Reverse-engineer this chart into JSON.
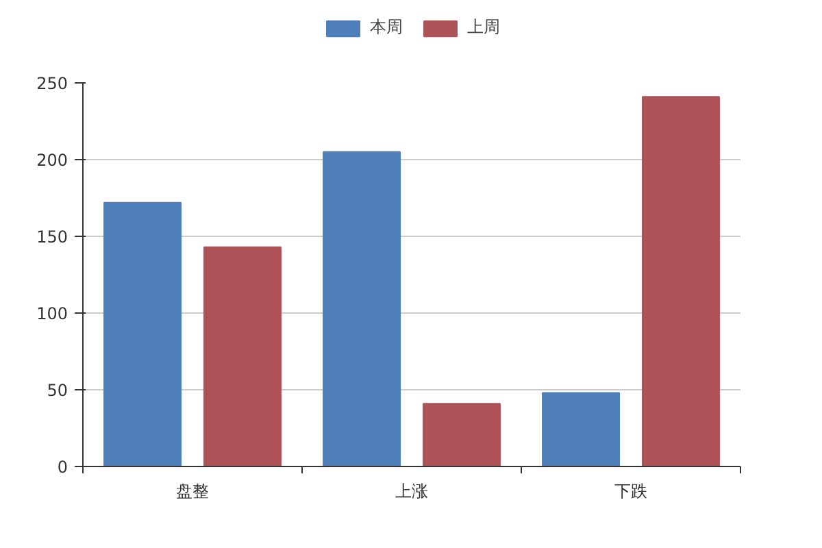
{
  "chart_data": {
    "type": "bar",
    "categories": [
      "盘整",
      "上涨",
      "下跌"
    ],
    "series": [
      {
        "name": "本周",
        "color": "#4e7fbb",
        "values": [
          172,
          205,
          48
        ]
      },
      {
        "name": "上周",
        "color": "#ad5358",
        "values": [
          143,
          41,
          241
        ]
      }
    ],
    "ylim": [
      0,
      250
    ],
    "yticks": [
      0,
      50,
      100,
      150,
      200,
      250
    ],
    "grid": "y",
    "legend": "top"
  }
}
